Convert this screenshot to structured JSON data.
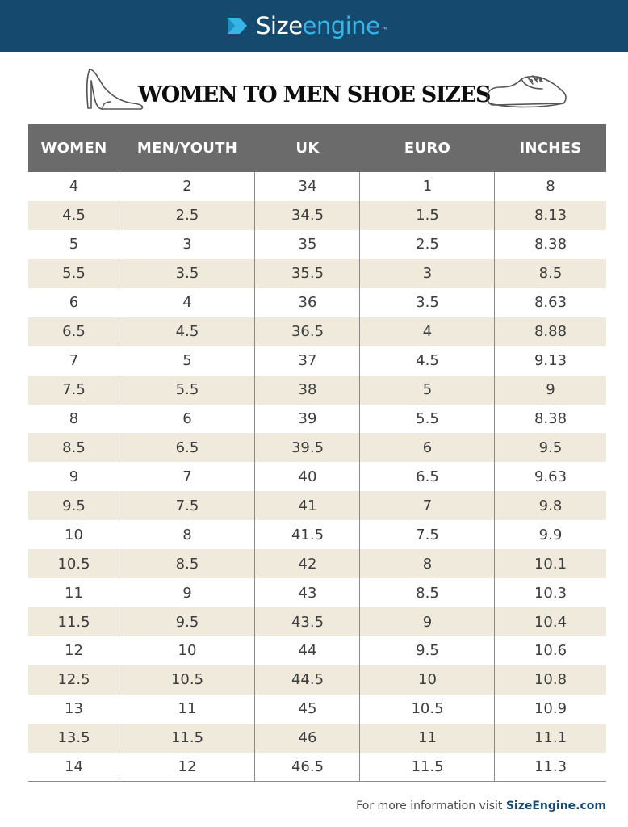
{
  "brand": {
    "part1": "Size",
    "part2": "engine",
    "tm": "™"
  },
  "title": "WOMEN TO MEN SHOE SIZES",
  "colors": {
    "header_bar": "#154a6e",
    "accent": "#35b6e6",
    "table_header": "#6b6b6b",
    "stripe": "#efeadb"
  },
  "icons": {
    "left": "high-heel-icon",
    "right": "mens-shoe-icon",
    "logo": "sizeengine-chevron-icon"
  },
  "table": {
    "headers": [
      "WOMEN",
      "MEN/YOUTH",
      "UK",
      "EURO",
      "INCHES"
    ],
    "rows": [
      [
        "4",
        "2",
        "34",
        "1",
        "8"
      ],
      [
        "4.5",
        "2.5",
        "34.5",
        "1.5",
        "8.13"
      ],
      [
        "5",
        "3",
        "35",
        "2.5",
        "8.38"
      ],
      [
        "5.5",
        "3.5",
        "35.5",
        "3",
        "8.5"
      ],
      [
        "6",
        "4",
        "36",
        "3.5",
        "8.63"
      ],
      [
        "6.5",
        "4.5",
        "36.5",
        "4",
        "8.88"
      ],
      [
        "7",
        "5",
        "37",
        "4.5",
        "9.13"
      ],
      [
        "7.5",
        "5.5",
        "38",
        "5",
        "9"
      ],
      [
        "8",
        "6",
        "39",
        "5.5",
        "8.38"
      ],
      [
        "8.5",
        "6.5",
        "39.5",
        "6",
        "9.5"
      ],
      [
        "9",
        "7",
        "40",
        "6.5",
        "9.63"
      ],
      [
        "9.5",
        "7.5",
        "41",
        "7",
        "9.8"
      ],
      [
        "10",
        "8",
        "41.5",
        "7.5",
        "9.9"
      ],
      [
        "10.5",
        "8.5",
        "42",
        "8",
        "10.1"
      ],
      [
        "11",
        "9",
        "43",
        "8.5",
        "10.3"
      ],
      [
        "11.5",
        "9.5",
        "43.5",
        "9",
        "10.4"
      ],
      [
        "12",
        "10",
        "44",
        "9.5",
        "10.6"
      ],
      [
        "12.5",
        "10.5",
        "44.5",
        "10",
        "10.8"
      ],
      [
        "13",
        "11",
        "45",
        "10.5",
        "10.9"
      ],
      [
        "13.5",
        "11.5",
        "46",
        "11",
        "11.1"
      ],
      [
        "14",
        "12",
        "46.5",
        "11.5",
        "11.3"
      ]
    ]
  },
  "footer": {
    "text": "For more information visit ",
    "site": "SizeEngine.com"
  }
}
